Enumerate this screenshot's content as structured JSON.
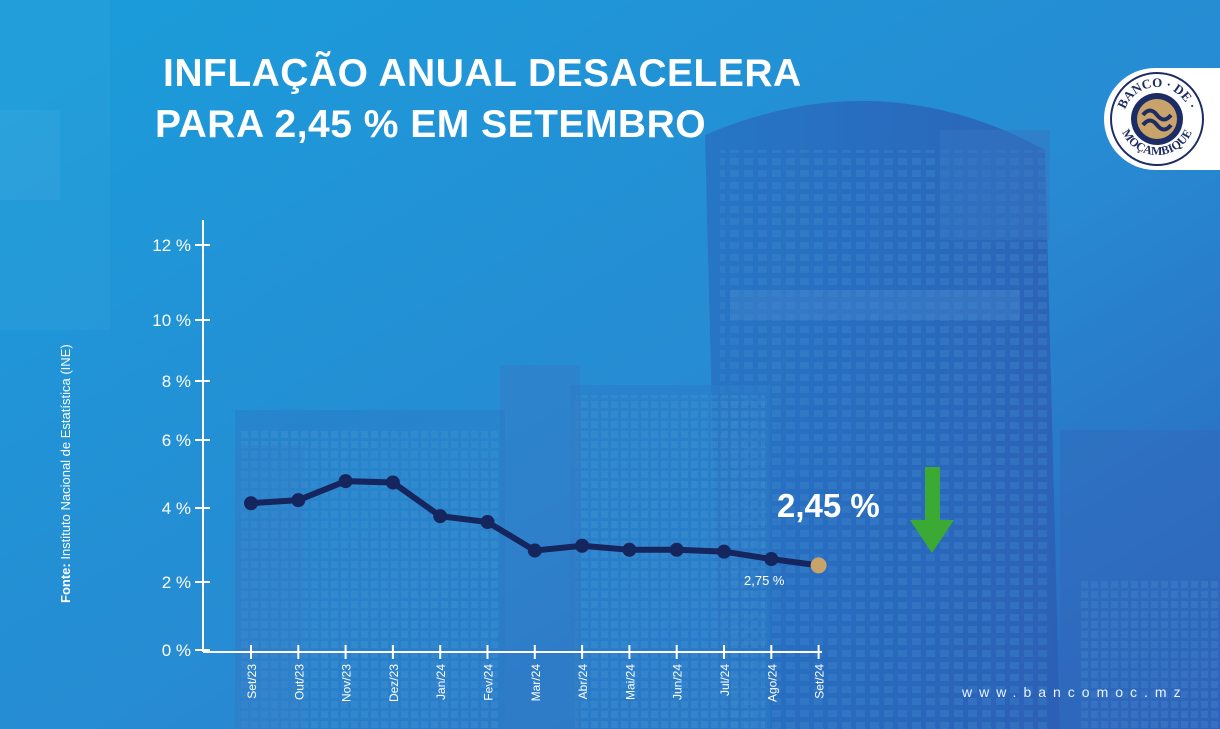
{
  "header": {
    "title_line1": "INFLAÇÃO ANUAL DESACELERA",
    "title_line2": "PARA 2,45 % EM SETEMBRO"
  },
  "source": {
    "prefix": "Fonte:",
    "text": "Instituto Nacional de Estatística (INE)"
  },
  "logo": {
    "top_text": "BANCO",
    "middle_text": "DE",
    "bottom_text": "MOÇAMBIQUE"
  },
  "website": "www.bancomoc.mz",
  "highlight": {
    "value_label": "2,45 %",
    "secondary_label": "2,75 %",
    "arrow_icon": "down-arrow-icon",
    "arrow_color": "#3aaa35"
  },
  "colors": {
    "line": "#15255e",
    "last_point": "#c9a46a",
    "axis": "#ffffff"
  },
  "chart_data": {
    "type": "line",
    "title": "INFLAÇÃO ANUAL DESACELERA PARA 2,45 % EM SETEMBRO",
    "categories": [
      "Set/23",
      "Out/23",
      "Nov/23",
      "Dez/23",
      "Jan/24",
      "Fev/24",
      "Mar/24",
      "Abr/24",
      "Mai/24",
      "Jun/24",
      "Jul/24",
      "Ago/24",
      "Set/24"
    ],
    "series": [
      {
        "values": [
          4.14,
          4.23,
          4.79,
          4.75,
          3.78,
          3.62,
          2.85,
          2.98,
          2.87,
          2.87,
          2.82,
          2.62,
          2.45
        ]
      }
    ],
    "yticks": [
      "0 %",
      "2 %",
      "4 %",
      "6 %",
      "8 %",
      "10 %",
      "12 %"
    ],
    "ytick_values": [
      0,
      2,
      4,
      6,
      8,
      10,
      12
    ],
    "ylim": [
      0,
      12
    ],
    "xlabel": "",
    "ylabel": "",
    "grid": false,
    "legend": "none"
  }
}
